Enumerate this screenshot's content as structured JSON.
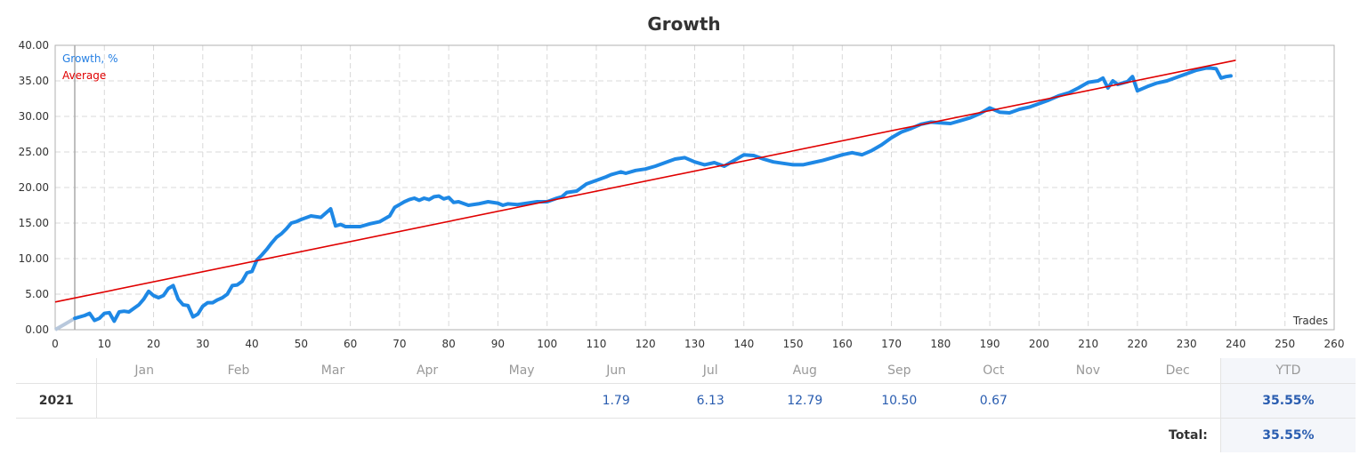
{
  "title": "Growth",
  "chart_data": {
    "type": "line",
    "title": "Growth",
    "xlabel": "Trades",
    "ylabel": "",
    "xlim": [
      0,
      260
    ],
    "ylim": [
      0,
      40
    ],
    "x_ticks": [
      "0",
      "10",
      "20",
      "30",
      "40",
      "50",
      "60",
      "70",
      "80",
      "90",
      "100",
      "110",
      "120",
      "130",
      "140",
      "150",
      "160",
      "170",
      "180",
      "190",
      "200",
      "210",
      "220",
      "230",
      "240",
      "250",
      "260"
    ],
    "y_ticks": [
      "0.00",
      "5.00",
      "10.00",
      "15.00",
      "20.00",
      "25.00",
      "30.00",
      "35.00",
      "40.00"
    ],
    "grid": true,
    "legend_position": "top-left",
    "series": [
      {
        "name": "Growth, %",
        "color": "#1e88e5",
        "x": [
          0,
          2,
          4,
          6,
          7,
          8,
          9,
          10,
          11,
          12,
          13,
          14,
          15,
          16,
          17,
          18,
          19,
          20,
          21,
          22,
          23,
          24,
          25,
          26,
          27,
          28,
          29,
          30,
          31,
          32,
          33,
          34,
          35,
          36,
          37,
          38,
          39,
          40,
          41,
          42,
          43,
          44,
          45,
          46,
          47,
          48,
          49,
          50,
          52,
          54,
          56,
          57,
          58,
          59,
          60,
          62,
          64,
          66,
          68,
          69,
          70,
          71,
          72,
          73,
          74,
          75,
          76,
          77,
          78,
          79,
          80,
          81,
          82,
          84,
          86,
          88,
          90,
          91,
          92,
          94,
          96,
          98,
          100,
          102,
          103,
          104,
          106,
          108,
          110,
          112,
          113,
          114,
          115,
          116,
          118,
          120,
          122,
          124,
          126,
          128,
          130,
          132,
          134,
          136,
          138,
          140,
          142,
          144,
          146,
          148,
          150,
          152,
          154,
          156,
          158,
          160,
          162,
          164,
          166,
          168,
          170,
          172,
          174,
          176,
          178,
          180,
          182,
          184,
          186,
          188,
          190,
          192,
          194,
          196,
          198,
          200,
          202,
          204,
          206,
          208,
          210,
          212,
          213,
          214,
          215,
          216,
          218,
          219,
          220,
          222,
          224,
          226,
          228,
          230,
          232,
          234,
          235,
          236,
          237,
          238,
          239
        ],
        "values": [
          0.0,
          0.8,
          1.6,
          2.0,
          2.3,
          1.3,
          1.6,
          2.3,
          2.4,
          1.2,
          2.5,
          2.6,
          2.5,
          3.0,
          3.5,
          4.3,
          5.4,
          4.8,
          4.5,
          4.8,
          5.8,
          6.2,
          4.3,
          3.5,
          3.4,
          1.8,
          2.2,
          3.3,
          3.8,
          3.8,
          4.2,
          4.5,
          5.0,
          6.2,
          6.3,
          6.8,
          8.0,
          8.2,
          9.8,
          10.5,
          11.3,
          12.2,
          13.0,
          13.5,
          14.2,
          15.0,
          15.2,
          15.5,
          16.0,
          15.8,
          17.0,
          14.6,
          14.8,
          14.5,
          14.5,
          14.5,
          14.9,
          15.2,
          16.0,
          17.2,
          17.6,
          18.0,
          18.3,
          18.5,
          18.2,
          18.5,
          18.3,
          18.7,
          18.8,
          18.4,
          18.6,
          17.9,
          18.0,
          17.5,
          17.7,
          18.0,
          17.8,
          17.5,
          17.7,
          17.6,
          17.8,
          18.0,
          18.0,
          18.5,
          18.7,
          19.3,
          19.5,
          20.5,
          21.0,
          21.5,
          21.8,
          22.0,
          22.2,
          22.0,
          22.4,
          22.6,
          23.0,
          23.5,
          24.0,
          24.2,
          23.6,
          23.2,
          23.5,
          23.0,
          23.8,
          24.6,
          24.5,
          24.0,
          23.6,
          23.4,
          23.2,
          23.2,
          23.5,
          23.8,
          24.2,
          24.6,
          24.9,
          24.6,
          25.2,
          26.0,
          27.0,
          27.8,
          28.3,
          28.9,
          29.2,
          29.1,
          29.0,
          29.4,
          29.8,
          30.4,
          31.2,
          30.6,
          30.5,
          31.0,
          31.3,
          31.8,
          32.3,
          32.9,
          33.3,
          34.0,
          34.8,
          35.0,
          35.4,
          34.0,
          35.0,
          34.5,
          34.9,
          35.6,
          33.6,
          34.2,
          34.7,
          35.0,
          35.5,
          36.0,
          36.5,
          36.8,
          36.8,
          36.7,
          35.4,
          35.6,
          35.7
        ]
      },
      {
        "name": "Average",
        "color": "#e00000",
        "x": [
          0,
          240
        ],
        "values": [
          3.9,
          37.9
        ]
      }
    ]
  },
  "legend": {
    "growth": "Growth, %",
    "average": "Average"
  },
  "axis_label": "Trades",
  "table": {
    "months": [
      "Jan",
      "Feb",
      "Mar",
      "Apr",
      "May",
      "Jun",
      "Jul",
      "Aug",
      "Sep",
      "Oct",
      "Nov",
      "Dec"
    ],
    "ytd_header": "YTD",
    "year": "2021",
    "values": [
      "",
      "",
      "",
      "",
      "",
      "1.79",
      "6.13",
      "12.79",
      "10.50",
      "0.67",
      "",
      ""
    ],
    "ytd": "35.55%",
    "total_label": "Total:",
    "total": "35.55%"
  }
}
